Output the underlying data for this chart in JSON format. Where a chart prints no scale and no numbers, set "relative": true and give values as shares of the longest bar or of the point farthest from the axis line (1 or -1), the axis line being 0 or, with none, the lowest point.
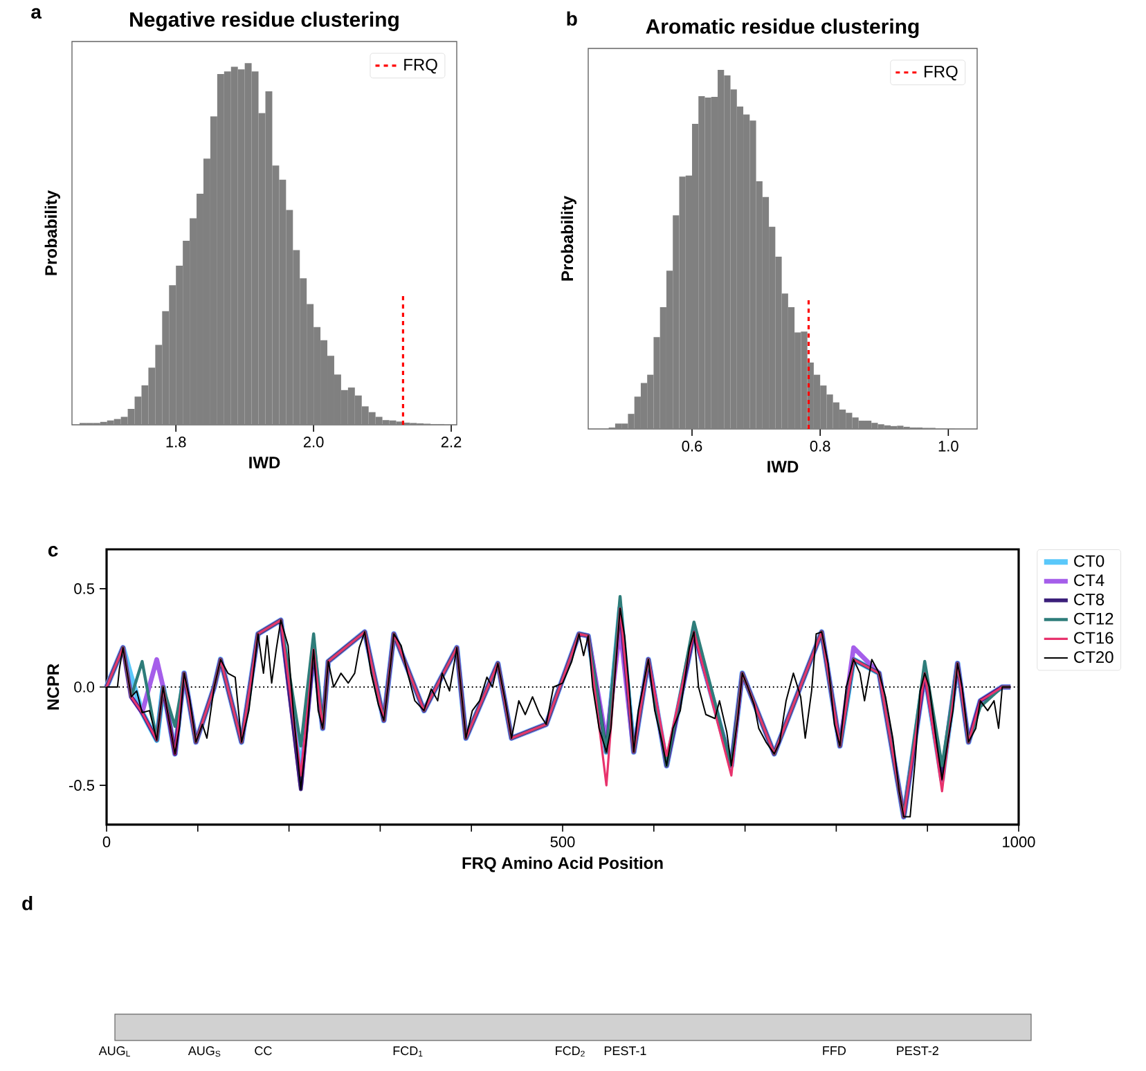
{
  "chart_data": [
    {
      "type": "bar",
      "title": "Negative residue clustering",
      "xlabel": "IWD",
      "ylabel": "Probability",
      "relative": true,
      "color": "#808080",
      "x": [
        1.665,
        1.675,
        1.685,
        1.695,
        1.705,
        1.715,
        1.725,
        1.735,
        1.745,
        1.755,
        1.765,
        1.775,
        1.785,
        1.795,
        1.805,
        1.815,
        1.825,
        1.835,
        1.845,
        1.855,
        1.865,
        1.875,
        1.885,
        1.895,
        1.905,
        1.915,
        1.925,
        1.935,
        1.945,
        1.955,
        1.965,
        1.975,
        1.985,
        1.995,
        2.005,
        2.015,
        2.025,
        2.035,
        2.045,
        2.055,
        2.065,
        2.075,
        2.085,
        2.095,
        2.105,
        2.115,
        2.125,
        2.135,
        2.145,
        2.155,
        2.165,
        2.175,
        2.185
      ],
      "values": [
        0.005,
        0.005,
        0.005,
        0.008,
        0.012,
        0.016,
        0.022,
        0.044,
        0.078,
        0.109,
        0.158,
        0.221,
        0.314,
        0.386,
        0.44,
        0.509,
        0.571,
        0.639,
        0.736,
        0.853,
        0.97,
        0.977,
        0.99,
        0.983,
        1.0,
        0.977,
        0.862,
        0.922,
        0.717,
        0.678,
        0.594,
        0.483,
        0.405,
        0.334,
        0.27,
        0.234,
        0.191,
        0.139,
        0.096,
        0.103,
        0.081,
        0.051,
        0.035,
        0.022,
        0.013,
        0.012,
        0.009,
        0.006,
        0.005,
        0.004,
        0.003,
        0.002,
        0.002
      ],
      "xlim": [
        1.649,
        2.208
      ],
      "xticks": [
        {
          "value": 1.8,
          "label": "1.8"
        },
        {
          "value": 2.0,
          "label": "2.0"
        },
        {
          "value": 2.2,
          "label": "2.2"
        }
      ],
      "ref_lines": [
        {
          "axis": "x",
          "value": 2.13,
          "label": "FRQ",
          "color": "#ff0000",
          "line_style": "dashed"
        }
      ],
      "legend": "top right",
      "annotations": [
        "a"
      ]
    },
    {
      "type": "bar",
      "title": "Aromatic residue clustering",
      "xlabel": "IWD",
      "ylabel": "Probability",
      "relative": true,
      "color": "#808080",
      "x": [
        0.475,
        0.485,
        0.495,
        0.505,
        0.515,
        0.525,
        0.535,
        0.545,
        0.555,
        0.565,
        0.575,
        0.585,
        0.595,
        0.605,
        0.615,
        0.625,
        0.635,
        0.645,
        0.655,
        0.665,
        0.675,
        0.685,
        0.695,
        0.705,
        0.715,
        0.725,
        0.735,
        0.745,
        0.755,
        0.765,
        0.775,
        0.785,
        0.795,
        0.805,
        0.815,
        0.825,
        0.835,
        0.845,
        0.855,
        0.865,
        0.875,
        0.885,
        0.895,
        0.905,
        0.915,
        0.925,
        0.935,
        0.945,
        0.955,
        0.965,
        0.975,
        0.985,
        0.995,
        1.005
      ],
      "values": [
        0.004,
        0.015,
        0.015,
        0.042,
        0.09,
        0.128,
        0.151,
        0.256,
        0.339,
        0.441,
        0.595,
        0.703,
        0.706,
        0.85,
        0.927,
        0.923,
        0.925,
        1.0,
        0.985,
        0.946,
        0.898,
        0.876,
        0.859,
        0.69,
        0.646,
        0.563,
        0.48,
        0.377,
        0.339,
        0.269,
        0.271,
        0.185,
        0.151,
        0.121,
        0.096,
        0.074,
        0.054,
        0.045,
        0.032,
        0.023,
        0.023,
        0.017,
        0.013,
        0.01,
        0.008,
        0.009,
        0.006,
        0.004,
        0.004,
        0.003,
        0.003,
        0.001,
        0.001,
        0.001
      ],
      "xlim": [
        0.438,
        1.045
      ],
      "xticks": [
        {
          "value": 0.6,
          "label": "0.6"
        },
        {
          "value": 0.8,
          "label": "0.8"
        },
        {
          "value": 1.0,
          "label": "1.0"
        }
      ],
      "ref_lines": [
        {
          "axis": "x",
          "value": 0.782,
          "label": "FRQ",
          "color": "#ff0000",
          "line_style": "dashed"
        }
      ],
      "legend": "top right",
      "annotations": [
        "b"
      ]
    },
    {
      "type": "line",
      "xlabel": "FRQ Amino Acid Position",
      "ylabel": "NCPR",
      "xlim": [
        0,
        1000
      ],
      "ylim": [
        -0.7,
        0.7
      ],
      "xticks": [
        {
          "value": 0,
          "label": "0"
        },
        {
          "value": 100,
          "label": null
        },
        {
          "value": 200,
          "label": null
        },
        {
          "value": 300,
          "label": null
        },
        {
          "value": 400,
          "label": null
        },
        {
          "value": 500,
          "label": "500"
        },
        {
          "value": 600,
          "label": null
        },
        {
          "value": 700,
          "label": null
        },
        {
          "value": 800,
          "label": null
        },
        {
          "value": 900,
          "label": null
        },
        {
          "value": 1000,
          "label": "1000"
        }
      ],
      "yticks": [
        {
          "value": -0.5,
          "label": "-0.5"
        },
        {
          "value": 0,
          "label": "0.0"
        },
        {
          "value": 0.5,
          "label": "0.5"
        }
      ],
      "ref_lines": [
        {
          "axis": "y",
          "value": 0,
          "color": "#000000",
          "line_style": "dotted"
        }
      ],
      "legend": "right",
      "annotations": [
        "c"
      ],
      "series": [
        {
          "name": "CT0",
          "color": "#5ac8fa",
          "x": [
            0,
            18,
            27,
            39,
            55,
            62,
            75,
            85,
            98,
            118,
            125,
            148,
            166,
            191,
            213,
            227,
            237,
            243,
            283,
            304,
            315,
            348,
            384,
            394,
            429,
            444,
            482,
            518,
            528,
            548,
            563,
            578,
            594,
            614,
            644,
            685,
            697,
            732,
            784,
            804,
            819,
            847,
            874,
            897,
            916,
            933,
            945,
            958,
            982,
            991
          ],
          "values": [
            0,
            0.2,
            0.05,
            -0.13,
            -0.27,
            0,
            -0.34,
            0.07,
            -0.28,
            0,
            0.14,
            -0.28,
            0.27,
            0.34,
            -0.45,
            0.19,
            -0.21,
            0.13,
            0.28,
            -0.17,
            0.27,
            -0.12,
            0.2,
            -0.26,
            0.12,
            -0.26,
            -0.19,
            0.27,
            0.26,
            -0.33,
            0.4,
            -0.33,
            0.14,
            -0.4,
            0.28,
            -0.4,
            0.07,
            -0.34,
            0.28,
            -0.3,
            0.14,
            0.07,
            -0.66,
            0.07,
            -0.47,
            0.12,
            -0.28,
            -0.07,
            0,
            0
          ]
        },
        {
          "name": "CT4",
          "color": "#a55eea",
          "x": [
            0,
            18,
            27,
            39,
            55,
            62,
            75,
            85,
            98,
            118,
            125,
            148,
            166,
            191,
            213,
            227,
            237,
            243,
            283,
            304,
            315,
            348,
            384,
            394,
            429,
            444,
            482,
            518,
            528,
            548,
            563,
            578,
            594,
            614,
            644,
            685,
            697,
            732,
            784,
            804,
            819,
            847,
            874,
            897,
            916,
            933,
            945,
            958,
            982,
            991
          ],
          "values": [
            0,
            0.2,
            -0.05,
            -0.13,
            0.14,
            0,
            -0.34,
            0.07,
            -0.28,
            0,
            0.14,
            -0.28,
            0.27,
            0.34,
            -0.5,
            0.19,
            -0.21,
            0.13,
            0.28,
            -0.17,
            0.27,
            -0.12,
            0.2,
            -0.26,
            0.12,
            -0.26,
            -0.19,
            0.27,
            0.26,
            -0.28,
            0.3,
            -0.33,
            0.14,
            -0.4,
            0.28,
            -0.4,
            0.07,
            -0.34,
            0.28,
            -0.3,
            0.2,
            0.07,
            -0.66,
            0.07,
            -0.45,
            0.12,
            -0.28,
            -0.07,
            0,
            0
          ]
        },
        {
          "name": "CT8",
          "color": "#3b1f7a",
          "x": [
            0,
            18,
            27,
            39,
            55,
            62,
            75,
            85,
            98,
            118,
            125,
            148,
            166,
            191,
            213,
            227,
            237,
            243,
            283,
            304,
            315,
            348,
            384,
            394,
            429,
            444,
            482,
            518,
            528,
            548,
            563,
            578,
            594,
            614,
            644,
            685,
            697,
            732,
            784,
            804,
            819,
            847,
            874,
            897,
            916,
            933,
            945,
            958,
            982,
            991
          ],
          "values": [
            0,
            0.2,
            -0.05,
            -0.13,
            -0.27,
            0,
            -0.34,
            0.07,
            -0.28,
            0,
            0.14,
            -0.28,
            0.27,
            0.34,
            -0.52,
            0.19,
            -0.21,
            0.13,
            0.28,
            -0.17,
            0.27,
            -0.12,
            0.2,
            -0.26,
            0.12,
            -0.26,
            -0.19,
            0.27,
            0.26,
            -0.33,
            0.4,
            -0.33,
            0.14,
            -0.4,
            0.28,
            -0.4,
            0.07,
            -0.34,
            0.28,
            -0.3,
            0.14,
            0.07,
            -0.66,
            0.07,
            -0.47,
            0.12,
            -0.28,
            -0.07,
            0,
            0
          ]
        },
        {
          "name": "CT12",
          "color": "#2e7d7a",
          "x": [
            0,
            18,
            27,
            39,
            55,
            62,
            75,
            85,
            98,
            118,
            125,
            148,
            166,
            191,
            213,
            227,
            237,
            243,
            283,
            304,
            315,
            348,
            384,
            394,
            429,
            444,
            482,
            518,
            528,
            548,
            563,
            578,
            594,
            614,
            644,
            685,
            697,
            732,
            784,
            804,
            819,
            847,
            874,
            897,
            916,
            933,
            945,
            958,
            982,
            991
          ],
          "values": [
            0,
            0.2,
            -0.05,
            0.13,
            -0.27,
            0,
            -0.2,
            0.07,
            -0.28,
            0,
            0.14,
            -0.28,
            0.27,
            0.34,
            -0.3,
            0.27,
            -0.21,
            0.13,
            0.28,
            -0.17,
            0.27,
            -0.12,
            0.2,
            -0.26,
            0.12,
            -0.26,
            -0.19,
            0.27,
            0.26,
            -0.33,
            0.46,
            -0.33,
            0.14,
            -0.4,
            0.33,
            -0.4,
            0.07,
            -0.34,
            0.28,
            -0.3,
            0.14,
            0.07,
            -0.66,
            0.13,
            -0.4,
            0.12,
            -0.28,
            -0.1,
            0,
            0
          ]
        },
        {
          "name": "CT16",
          "color": "#e8336d",
          "x": [
            0,
            18,
            27,
            39,
            55,
            62,
            75,
            85,
            98,
            118,
            125,
            148,
            166,
            191,
            213,
            227,
            237,
            243,
            283,
            304,
            315,
            348,
            384,
            394,
            429,
            444,
            482,
            518,
            528,
            548,
            563,
            578,
            594,
            614,
            644,
            685,
            697,
            732,
            784,
            804,
            819,
            847,
            874,
            897,
            916,
            933,
            945,
            958,
            982,
            991
          ],
          "values": [
            0,
            0.2,
            -0.05,
            -0.13,
            -0.27,
            0,
            -0.34,
            0.07,
            -0.28,
            0,
            0.14,
            -0.28,
            0.27,
            0.34,
            -0.45,
            0.19,
            -0.21,
            0.13,
            0.28,
            -0.17,
            0.27,
            -0.12,
            0.2,
            -0.26,
            0.12,
            -0.26,
            -0.19,
            0.27,
            0.26,
            -0.5,
            0.4,
            -0.33,
            0.14,
            -0.35,
            0.28,
            -0.45,
            0.07,
            -0.34,
            0.28,
            -0.3,
            0.14,
            0.07,
            -0.66,
            0.07,
            -0.53,
            0.12,
            -0.28,
            -0.07,
            0,
            0
          ]
        },
        {
          "name": "CT20",
          "color": "#000000",
          "x": [
            0,
            12,
            14,
            18,
            22,
            27,
            33,
            39,
            47,
            55,
            62,
            70,
            75,
            80,
            85,
            91,
            98,
            105,
            110,
            118,
            125,
            133,
            141,
            148,
            156,
            161,
            166,
            172,
            176,
            181,
            186,
            191,
            199,
            205,
            213,
            219,
            227,
            232,
            237,
            243,
            249,
            257,
            265,
            272,
            277,
            283,
            290,
            298,
            304,
            309,
            315,
            323,
            330,
            338,
            348,
            356,
            363,
            368,
            376,
            384,
            394,
            401,
            409,
            417,
            423,
            429,
            437,
            444,
            452,
            459,
            467,
            475,
            482,
            490,
            500,
            510,
            518,
            523,
            528,
            533,
            540,
            548,
            553,
            563,
            568,
            573,
            578,
            583,
            594,
            601,
            609,
            614,
            621,
            629,
            639,
            644,
            649,
            657,
            667,
            672,
            680,
            685,
            692,
            697,
            703,
            710,
            715,
            723,
            732,
            738,
            745,
            753,
            761,
            766,
            773,
            778,
            784,
            791,
            798,
            804,
            811,
            819,
            826,
            831,
            839,
            847,
            854,
            862,
            869,
            874,
            881,
            887,
            892,
            897,
            902,
            910,
            916,
            923,
            928,
            933,
            938,
            945,
            953,
            958,
            966,
            973,
            978,
            982,
            991
          ],
          "values": [
            0,
            0,
            0.09,
            0.2,
            0.09,
            -0.05,
            -0.02,
            -0.13,
            -0.12,
            -0.27,
            0,
            -0.21,
            -0.34,
            -0.2,
            0.07,
            -0.06,
            -0.28,
            -0.19,
            -0.26,
            0,
            0.14,
            0.07,
            0.05,
            -0.28,
            -0.12,
            0.07,
            0.27,
            0.07,
            0.26,
            0.02,
            0.19,
            0.34,
            0.21,
            -0.14,
            -0.52,
            -0.26,
            0.19,
            -0.12,
            -0.21,
            0.13,
            0,
            0.07,
            0.02,
            0.07,
            0.2,
            0.28,
            0.07,
            -0.09,
            -0.17,
            0.02,
            0.27,
            0.21,
            0.07,
            -0.07,
            -0.12,
            -0.01,
            -0.07,
            0.07,
            -0.02,
            0.2,
            -0.26,
            -0.12,
            -0.07,
            0.05,
            0,
            0.12,
            -0.07,
            -0.26,
            -0.07,
            -0.14,
            -0.05,
            -0.14,
            -0.19,
            0,
            0.02,
            0.13,
            0.27,
            0.16,
            0.26,
            0,
            -0.21,
            -0.33,
            -0.21,
            0.4,
            0.26,
            0,
            -0.33,
            -0.12,
            0.14,
            -0.12,
            -0.28,
            -0.4,
            -0.21,
            -0.12,
            0.2,
            0.28,
            0,
            -0.14,
            -0.16,
            -0.07,
            -0.23,
            -0.4,
            -0.16,
            0.07,
            0,
            -0.09,
            -0.21,
            -0.28,
            -0.34,
            -0.28,
            -0.07,
            0.07,
            -0.05,
            -0.26,
            -0.02,
            0.27,
            0.28,
            0.12,
            -0.19,
            -0.3,
            0,
            0.14,
            0.07,
            -0.07,
            0.14,
            0.07,
            -0.05,
            -0.26,
            -0.53,
            -0.66,
            -0.66,
            -0.35,
            -0.02,
            0.07,
            0,
            -0.28,
            -0.47,
            -0.26,
            -0.12,
            0.12,
            0,
            -0.28,
            -0.21,
            -0.07,
            -0.12,
            -0.07,
            -0.21,
            0,
            0
          ]
        }
      ]
    },
    {
      "type": "other",
      "annotations": [
        "d",
        "AUG$_{L}$",
        "AUG$_{S}$",
        "CC",
        "FCD$_{1}$",
        "FCD$_{2}$",
        "PEST-1",
        "FFD",
        "PEST-2"
      ]
    }
  ]
}
